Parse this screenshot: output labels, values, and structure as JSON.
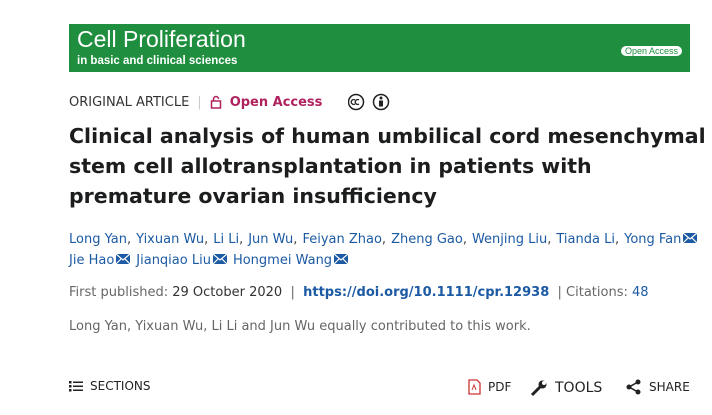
{
  "journal": {
    "title": "Cell Proliferation",
    "subtitle": "in basic and clinical sciences",
    "badge": "Open Access"
  },
  "article": {
    "type": "ORIGINAL ARTICLE",
    "access": "Open Access",
    "title_lines": [
      "Clinical analysis of human umbilical cord mesenchymal",
      "stem cell allotransplantation in patients with",
      "premature ovarian insufficiency"
    ],
    "authors": [
      {
        "name": "Long Yan",
        "email": false
      },
      {
        "name": "Yixuan Wu",
        "email": false
      },
      {
        "name": "Li Li",
        "email": false
      },
      {
        "name": "Jun Wu",
        "email": false
      },
      {
        "name": "Feiyan Zhao",
        "email": false
      },
      {
        "name": "Zheng Gao",
        "email": false
      },
      {
        "name": "Wenjing Liu",
        "email": false
      },
      {
        "name": "Tianda Li",
        "email": false
      },
      {
        "name": "Yong Fan",
        "email": true
      },
      {
        "name": "Jie Hao",
        "email": true
      },
      {
        "name": "Jianqiao Liu",
        "email": true
      },
      {
        "name": "Hongmei Wang",
        "email": true
      }
    ],
    "author_separator": ",",
    "published_label": "First published:",
    "published_date": "29 October 2020",
    "separator": "|",
    "doi": "https://doi.org/10.1111/cpr.12938",
    "citations_label": "Citations:",
    "citations": 48,
    "note": "Long Yan, Yixuan Wu, Li Li and Jun Wu equally contributed to this work."
  },
  "toolbar": {
    "sections": "SECTIONS",
    "pdf": "PDF",
    "tools": "TOOLS",
    "share": "SHARE"
  }
}
